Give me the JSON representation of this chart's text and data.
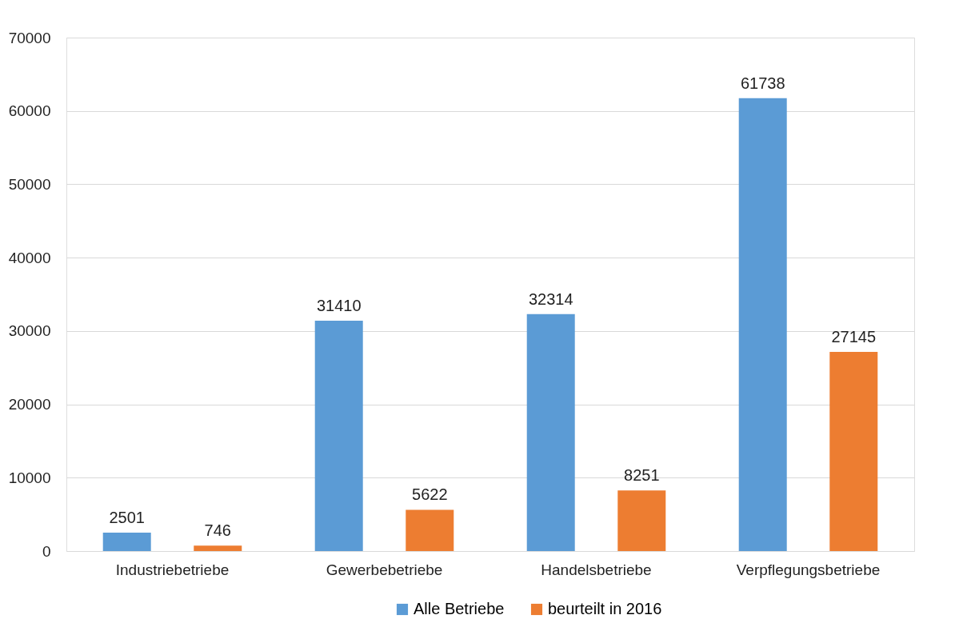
{
  "chart_data": {
    "type": "bar",
    "categories": [
      "Industriebetriebe",
      "Gewerbebetriebe",
      "Handelsbetriebe",
      "Verpflegungsbetriebe"
    ],
    "series": [
      {
        "name": "Alle Betriebe",
        "color": "#5b9bd5",
        "values": [
          2501,
          31410,
          32314,
          61738
        ]
      },
      {
        "name": "beurteilt in 2016",
        "color": "#ed7d31",
        "values": [
          746,
          5622,
          8251,
          27145
        ]
      }
    ],
    "ylim": [
      0,
      70000
    ],
    "yticks": [
      0,
      10000,
      20000,
      30000,
      40000,
      50000,
      60000,
      70000
    ],
    "grid": "y",
    "legend": "bottom",
    "data_labels": true
  }
}
